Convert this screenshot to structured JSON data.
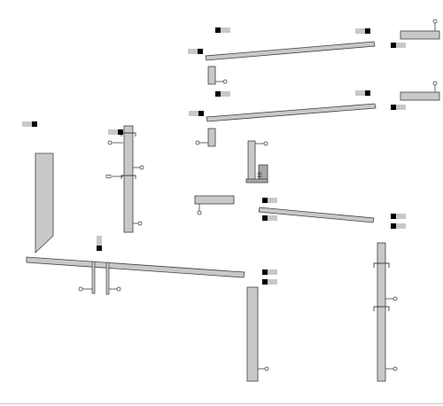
{
  "colors": {
    "background": "#ffffff",
    "part_fill": "#c8c8c8",
    "outline": "#404040",
    "label_black": "#000000",
    "label_grey": "#c8c8c8",
    "hinge": "#555555"
  },
  "icons": [
    "tag-marker-icon",
    "pin-knob-icon",
    "bracket-icon",
    "hinge-icon"
  ]
}
